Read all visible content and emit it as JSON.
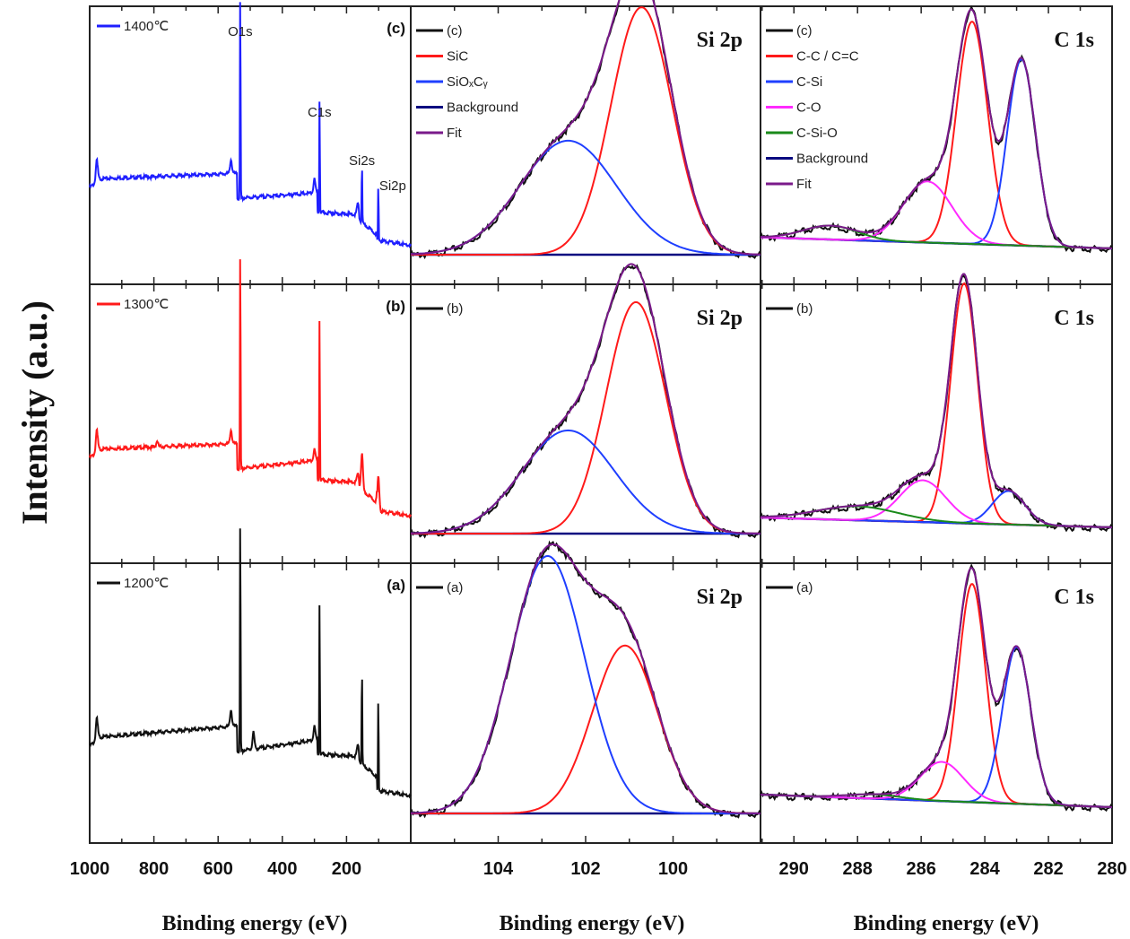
{
  "chart_data": {
    "type": "line",
    "ylabel": "Intensity (a.u.)",
    "layout": "3 rows x 3 columns; rows top-to-bottom: (c) 1400°C, (b) 1300°C, (a) 1200°C",
    "columns": [
      {
        "id": "survey",
        "xlabel": "Binding energy (eV)",
        "xlim": [
          1000,
          0
        ],
        "xticks": [
          1000,
          800,
          600,
          400,
          200
        ],
        "xtick_labels": [
          "1000",
          "800",
          "600",
          "400",
          "200"
        ],
        "peak_labels": [
          {
            "text": "O1s",
            "x": 531
          },
          {
            "text": "C1s",
            "x": 284
          },
          {
            "text": "Si2s",
            "x": 152
          },
          {
            "text": "Si2p",
            "x": 101
          }
        ],
        "rows": [
          {
            "letter": "(c)",
            "legend": "1400℃",
            "color": "#1f1fff",
            "peaks": [
              {
                "x": 978,
                "h": 0.08
              },
              {
                "x": 560,
                "h": 0.05
              },
              {
                "x": 531,
                "h": 0.78
              },
              {
                "x": 300,
                "h": 0.05
              },
              {
                "x": 284,
                "h": 0.42
              },
              {
                "x": 165,
                "h": 0.04
              },
              {
                "x": 152,
                "h": 0.22
              },
              {
                "x": 101,
                "h": 0.2
              }
            ],
            "baseline": [
              0.22,
              0.25,
              0.27,
              0.18,
              0.2,
              0.22,
              0.13,
              0.1,
              0.03,
              0.02
            ]
          },
          {
            "letter": "(b)",
            "legend": "1300℃",
            "color": "#ff1a1a",
            "peaks": [
              {
                "x": 978,
                "h": 0.08
              },
              {
                "x": 790,
                "h": 0.02
              },
              {
                "x": 560,
                "h": 0.05
              },
              {
                "x": 531,
                "h": 0.83
              },
              {
                "x": 300,
                "h": 0.04
              },
              {
                "x": 284,
                "h": 0.6
              },
              {
                "x": 165,
                "h": 0.03
              },
              {
                "x": 152,
                "h": 0.13
              },
              {
                "x": 101,
                "h": 0.12
              }
            ],
            "baseline": [
              0.25,
              0.28,
              0.3,
              0.21,
              0.24,
              0.26,
              0.17,
              0.14,
              0.06,
              0.03
            ]
          },
          {
            "letter": "(a)",
            "legend": "1200℃",
            "color": "#111111",
            "peaks": [
              {
                "x": 978,
                "h": 0.08
              },
              {
                "x": 560,
                "h": 0.06
              },
              {
                "x": 531,
                "h": 0.88
              },
              {
                "x": 490,
                "h": 0.06
              },
              {
                "x": 300,
                "h": 0.05
              },
              {
                "x": 284,
                "h": 0.56
              },
              {
                "x": 165,
                "h": 0.04
              },
              {
                "x": 152,
                "h": 0.36
              },
              {
                "x": 101,
                "h": 0.34
              }
            ],
            "baseline": [
              0.22,
              0.25,
              0.29,
              0.2,
              0.24,
              0.26,
              0.19,
              0.16,
              0.06,
              0.04
            ]
          }
        ]
      },
      {
        "id": "si2p",
        "title": "Si 2p",
        "xlabel": "Binding energy (eV)",
        "xlim": [
          106,
          98
        ],
        "xticks": [
          104,
          102,
          100
        ],
        "xtick_labels": [
          "104",
          "102",
          "100"
        ],
        "legend": [
          {
            "label": "(c)",
            "color": "#111111"
          },
          {
            "label": "SiC",
            "color": "#ff1a1a"
          },
          {
            "label": "SiOₓCᵧ",
            "color": "#1f3fff"
          },
          {
            "label": "Background",
            "color": "#0a0a80"
          },
          {
            "label": "Fit",
            "color": "#7a1a8a"
          }
        ],
        "rows": [
          {
            "letter": "(c)",
            "components": [
              {
                "name": "SiC",
                "center": 100.72,
                "fwhm": 1.65,
                "height": 0.89,
                "color": "#ff1a1a"
              },
              {
                "name": "SiOₓCᵧ",
                "center": 102.4,
                "fwhm": 2.6,
                "height": 0.41,
                "color": "#1f3fff"
              }
            ]
          },
          {
            "letter": "(b)",
            "components": [
              {
                "name": "SiC",
                "center": 100.85,
                "fwhm": 1.6,
                "height": 0.83,
                "color": "#ff1a1a"
              },
              {
                "name": "SiOₓCᵧ",
                "center": 102.4,
                "fwhm": 2.5,
                "height": 0.37,
                "color": "#1f3fff"
              }
            ]
          },
          {
            "letter": "(a)",
            "components": [
              {
                "name": "SiC",
                "center": 101.1,
                "fwhm": 1.75,
                "height": 0.6,
                "color": "#ff1a1a"
              },
              {
                "name": "SiOₓCᵧ",
                "center": 102.87,
                "fwhm": 2.0,
                "height": 0.92,
                "color": "#1f3fff"
              }
            ]
          }
        ]
      },
      {
        "id": "c1s",
        "title": "C 1s",
        "xlabel": "Binding energy (eV)",
        "xlim": [
          291.05,
          280
        ],
        "xticks": [
          290,
          288,
          286,
          284,
          282,
          280
        ],
        "xtick_labels": [
          "290",
          "288",
          "286",
          "284",
          "282",
          "280"
        ],
        "legend": [
          {
            "label": "(c)",
            "color": "#111111"
          },
          {
            "label": "C-C / C=C",
            "color": "#ff1a1a"
          },
          {
            "label": "C-Si",
            "color": "#1f3fff"
          },
          {
            "label": "C-O",
            "color": "#ff2aff"
          },
          {
            "label": "C-Si-O",
            "color": "#1a8a1a"
          },
          {
            "label": "Background",
            "color": "#0a0a80"
          },
          {
            "label": "Fit",
            "color": "#7a1a8a"
          }
        ],
        "rows": [
          {
            "letter": "(c)",
            "background": [
              0.04,
              0.0
            ],
            "components": [
              {
                "name": "C-C / C=C",
                "center": 284.4,
                "fwhm": 1.15,
                "height": 0.8,
                "color": "#ff1a1a"
              },
              {
                "name": "C-Si",
                "center": 282.85,
                "fwhm": 1.05,
                "height": 0.67,
                "color": "#1f3fff"
              },
              {
                "name": "C-O",
                "center": 285.8,
                "fwhm": 1.8,
                "height": 0.22,
                "color": "#ff2aff"
              },
              {
                "name": "C-Si-O",
                "center": 288.85,
                "fwhm": 2.0,
                "height": 0.05,
                "color": "#1a8a1a"
              }
            ]
          },
          {
            "letter": "(b)",
            "background": [
              0.035,
              0.0
            ],
            "components": [
              {
                "name": "C-C / C=C",
                "center": 284.65,
                "fwhm": 1.0,
                "height": 0.86,
                "color": "#ff1a1a"
              },
              {
                "name": "C-Si",
                "center": 283.25,
                "fwhm": 1.2,
                "height": 0.12,
                "color": "#1f3fff"
              },
              {
                "name": "C-O",
                "center": 285.95,
                "fwhm": 1.7,
                "height": 0.15,
                "color": "#ff2aff"
              },
              {
                "name": "C-Si-O",
                "center": 288.0,
                "fwhm": 3.0,
                "height": 0.05,
                "color": "#1a8a1a"
              }
            ]
          },
          {
            "letter": "(a)",
            "background": [
              0.045,
              0.0
            ],
            "components": [
              {
                "name": "C-C / C=C",
                "center": 284.4,
                "fwhm": 1.0,
                "height": 0.78,
                "color": "#ff1a1a"
              },
              {
                "name": "C-Si",
                "center": 283.0,
                "fwhm": 1.05,
                "height": 0.56,
                "color": "#1f3fff"
              },
              {
                "name": "C-O",
                "center": 285.35,
                "fwhm": 1.6,
                "height": 0.14,
                "color": "#ff2aff"
              },
              {
                "name": "C-Si-O",
                "center": 287.5,
                "fwhm": 2.0,
                "height": 0.015,
                "color": "#1a8a1a"
              }
            ]
          }
        ]
      }
    ]
  },
  "labels": {
    "ylabel": "Intensity (a.u.)",
    "xlabel_survey": "Binding energy (eV)",
    "xlabel_si2p": "Binding energy (eV)",
    "xlabel_c1s": "Binding energy (eV)"
  }
}
